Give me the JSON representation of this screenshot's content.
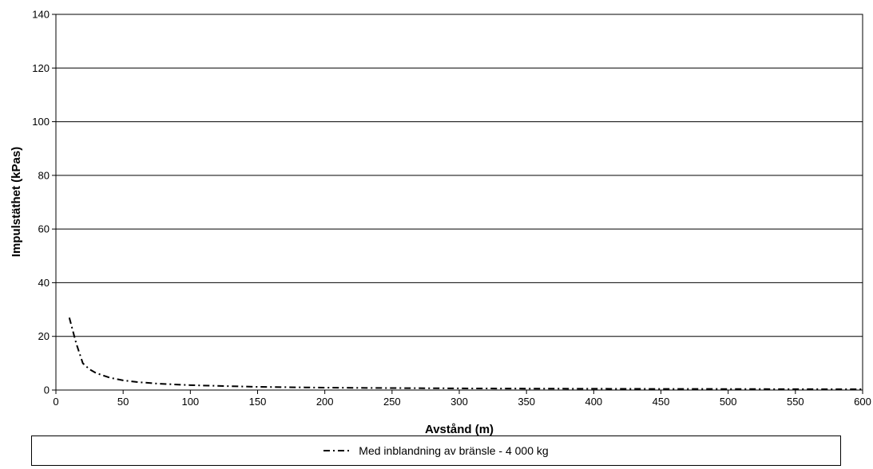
{
  "chart_data": {
    "type": "line",
    "xlabel": "Avstånd (m)",
    "ylabel": "Impulstäthet (kPas)",
    "xlim": [
      0,
      600
    ],
    "ylim": [
      0,
      140
    ],
    "x_ticks": [
      0,
      50,
      100,
      150,
      200,
      250,
      300,
      350,
      400,
      450,
      500,
      550,
      600
    ],
    "y_ticks": [
      0,
      20,
      40,
      60,
      80,
      100,
      120,
      140
    ],
    "grid": "horizontal",
    "legend_position": "bottom",
    "series": [
      {
        "name": "Med inblandning av bränsle - 4 000 kg",
        "color": "#000000",
        "line_style": "dash-dot",
        "x": [
          10,
          15,
          20,
          25,
          30,
          40,
          50,
          60,
          75,
          100,
          125,
          150,
          200,
          250,
          300,
          350,
          400,
          450,
          500,
          550,
          600
        ],
        "y": [
          27,
          17.5,
          10,
          7.7,
          6.3,
          4.6,
          3.6,
          3.0,
          2.4,
          1.8,
          1.5,
          1.2,
          0.9,
          0.75,
          0.62,
          0.53,
          0.47,
          0.42,
          0.38,
          0.34,
          0.31
        ]
      }
    ]
  }
}
